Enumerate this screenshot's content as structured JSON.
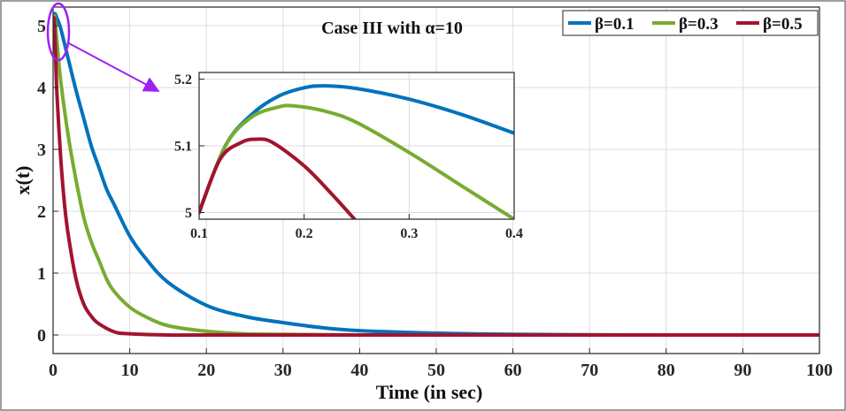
{
  "chart_data": [
    {
      "type": "line",
      "title": "Case III with α=10",
      "xlabel": "Time (in sec)",
      "ylabel": "x(t)",
      "xlim": [
        0,
        100
      ],
      "ylim": [
        -0.3,
        5.3
      ],
      "grid": true,
      "legend_position": "top-right",
      "xticks": [
        "0",
        "10",
        "20",
        "30",
        "40",
        "50",
        "60",
        "70",
        "80",
        "90",
        "100"
      ],
      "yticks": [
        "0",
        "1",
        "2",
        "3",
        "4",
        "5"
      ],
      "series": [
        {
          "name": "β=0.1",
          "color": "#0072BD",
          "x": [
            0.1,
            0.2,
            0.5,
            1,
            2,
            3,
            4,
            5,
            6,
            7,
            8,
            10,
            12,
            15,
            20,
            25,
            30,
            35,
            40,
            50,
            60,
            80,
            100
          ],
          "y": [
            5.0,
            5.19,
            5.12,
            4.95,
            4.45,
            3.95,
            3.5,
            3.05,
            2.7,
            2.35,
            2.1,
            1.6,
            1.25,
            0.85,
            0.48,
            0.3,
            0.2,
            0.12,
            0.07,
            0.03,
            0.01,
            0.0,
            0.0
          ]
        },
        {
          "name": "β=0.3",
          "color": "#77AC30",
          "x": [
            0.1,
            0.2,
            0.5,
            1,
            2,
            3,
            4,
            5,
            6,
            7,
            8,
            10,
            12,
            15,
            20,
            25,
            30,
            40,
            60,
            80,
            100
          ],
          "y": [
            5.0,
            5.15,
            4.75,
            4.1,
            3.2,
            2.5,
            1.9,
            1.5,
            1.2,
            0.9,
            0.7,
            0.45,
            0.3,
            0.15,
            0.06,
            0.02,
            0.01,
            0.0,
            0.0,
            0.0,
            0.0
          ]
        },
        {
          "name": "β=0.5",
          "color": "#A2142F",
          "x": [
            0.1,
            0.15,
            0.3,
            0.5,
            1,
            1.5,
            2,
            3,
            4,
            5,
            6,
            8,
            10,
            15,
            20,
            40,
            60,
            100
          ],
          "y": [
            5.0,
            5.11,
            4.6,
            3.9,
            2.85,
            2.1,
            1.6,
            0.9,
            0.5,
            0.3,
            0.18,
            0.05,
            0.02,
            0.0,
            0.0,
            0.0,
            0.0,
            0.0
          ]
        }
      ]
    },
    {
      "type": "line",
      "xlim": [
        0.1,
        0.4
      ],
      "ylim": [
        4.99,
        5.21
      ],
      "grid": true,
      "xticks": [
        "0.1",
        "0.2",
        "0.3",
        "0.4"
      ],
      "yticks": [
        "5",
        "5.1",
        "5.2"
      ],
      "series": [
        {
          "color": "#0072BD",
          "x": [
            0.1,
            0.125,
            0.15,
            0.175,
            0.2,
            0.22,
            0.25,
            0.3,
            0.35,
            0.4
          ],
          "y": [
            5.0,
            5.1,
            5.147,
            5.174,
            5.187,
            5.19,
            5.186,
            5.17,
            5.147,
            5.119
          ]
        },
        {
          "color": "#77AC30",
          "x": [
            0.1,
            0.125,
            0.15,
            0.175,
            0.19,
            0.22,
            0.25,
            0.3,
            0.35,
            0.4
          ],
          "y": [
            5.0,
            5.1,
            5.143,
            5.158,
            5.16,
            5.152,
            5.135,
            5.09,
            5.04,
            4.99
          ]
        },
        {
          "color": "#A2142F",
          "x": [
            0.1,
            0.12,
            0.14,
            0.155,
            0.17,
            0.2,
            0.225,
            0.248
          ],
          "y": [
            5.0,
            5.08,
            5.105,
            5.11,
            5.105,
            5.07,
            5.03,
            4.99
          ]
        }
      ]
    }
  ]
}
